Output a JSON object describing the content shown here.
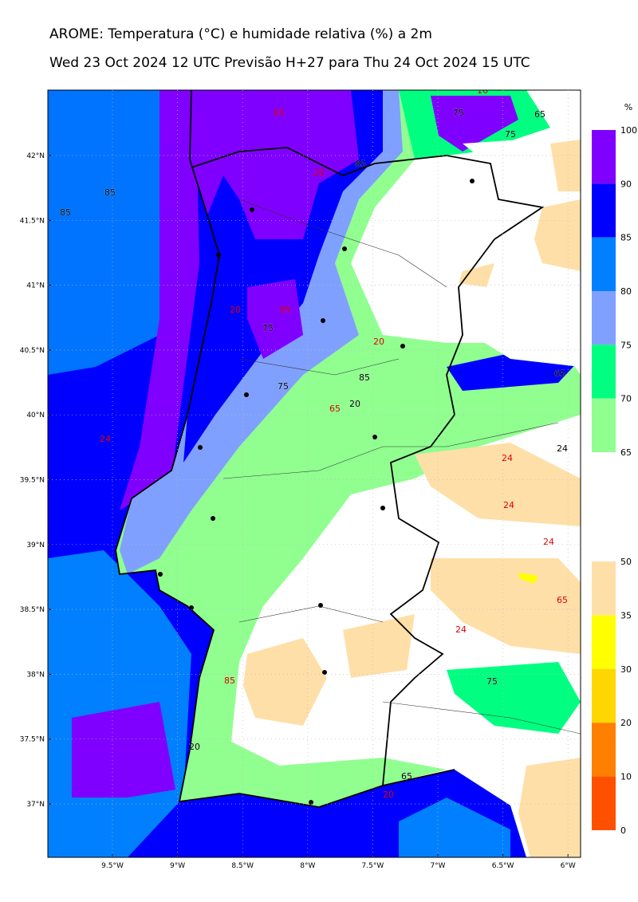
{
  "header": {
    "title": "AROME: Temperatura (°C) e humidade relativa (%) a 2m",
    "subtitle": "Wed 23 Oct 2024 12 UTC Previsão H+27 para Thu 24 Oct 2024 15 UTC"
  },
  "map": {
    "lat_labels": [
      "42°N",
      "41.5°N",
      "41°N",
      "40.5°N",
      "40°N",
      "39.5°N",
      "39°N",
      "38.5°N",
      "38°N",
      "37.5°N",
      "37°N"
    ],
    "lon_labels": [
      "9.5°W",
      "9°W",
      "8.5°W",
      "8°W",
      "7.5°W",
      "7°W",
      "6.5°W",
      "6°W"
    ],
    "contour_labels": [
      "16",
      "75",
      "65",
      "75",
      "85",
      "85",
      "85",
      "85",
      "20",
      "20",
      "85",
      "75",
      "85",
      "75",
      "20",
      "65",
      "20",
      "65",
      "24",
      "24",
      "24",
      "24",
      "24",
      "65",
      "24",
      "75",
      "85",
      "20",
      "65",
      "20"
    ]
  },
  "humidity_legend": {
    "unit": "%",
    "labels": [
      "100",
      "90",
      "85",
      "80",
      "75",
      "70",
      "65"
    ]
  },
  "temperature_legend": {
    "labels": [
      "50",
      "35",
      "30",
      "20",
      "10",
      "0"
    ]
  }
}
